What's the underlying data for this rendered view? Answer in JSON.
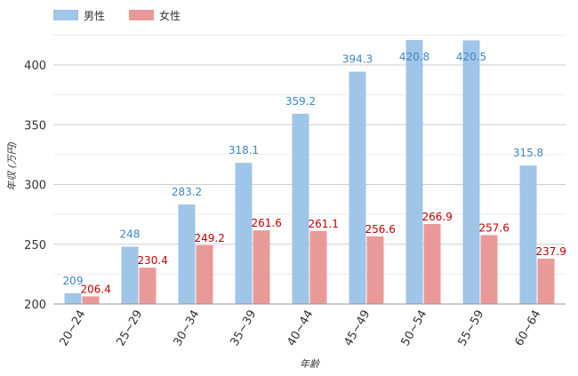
{
  "chart_data": {
    "type": "bar",
    "title": "",
    "xlabel": "年齢",
    "ylabel": "年収 (万円)",
    "ylim": [
      200,
      420
    ],
    "yticks": [
      200,
      250,
      300,
      350,
      400
    ],
    "grid": true,
    "legend": "top-left",
    "categories": [
      "20~24",
      "25~29",
      "30~34",
      "35~39",
      "40~44",
      "45~49",
      "50~54",
      "55~59",
      "60~64"
    ],
    "series": [
      {
        "name": "男性",
        "color": "#9fc5e8",
        "label_color": "#3f86c7",
        "values": [
          209.0,
          248,
          283.2,
          318.1,
          359.2,
          394.3,
          420.8,
          420.5,
          315.8
        ],
        "labels": [
          "209",
          "248",
          "283.2",
          "318.1",
          "359.2",
          "394.3",
          "420.8",
          "420.5",
          "315.8"
        ]
      },
      {
        "name": "女性",
        "color": "#ea9999",
        "label_color": "#c00000",
        "values": [
          206.4,
          230.4,
          249.2,
          261.6,
          261.1,
          256.6,
          266.9,
          257.6,
          237.9
        ],
        "labels": [
          "206.4",
          "230.4",
          "249.2",
          "261.6",
          "261.1",
          "256.6",
          "266.9",
          "257.6",
          "237.9"
        ]
      }
    ]
  }
}
